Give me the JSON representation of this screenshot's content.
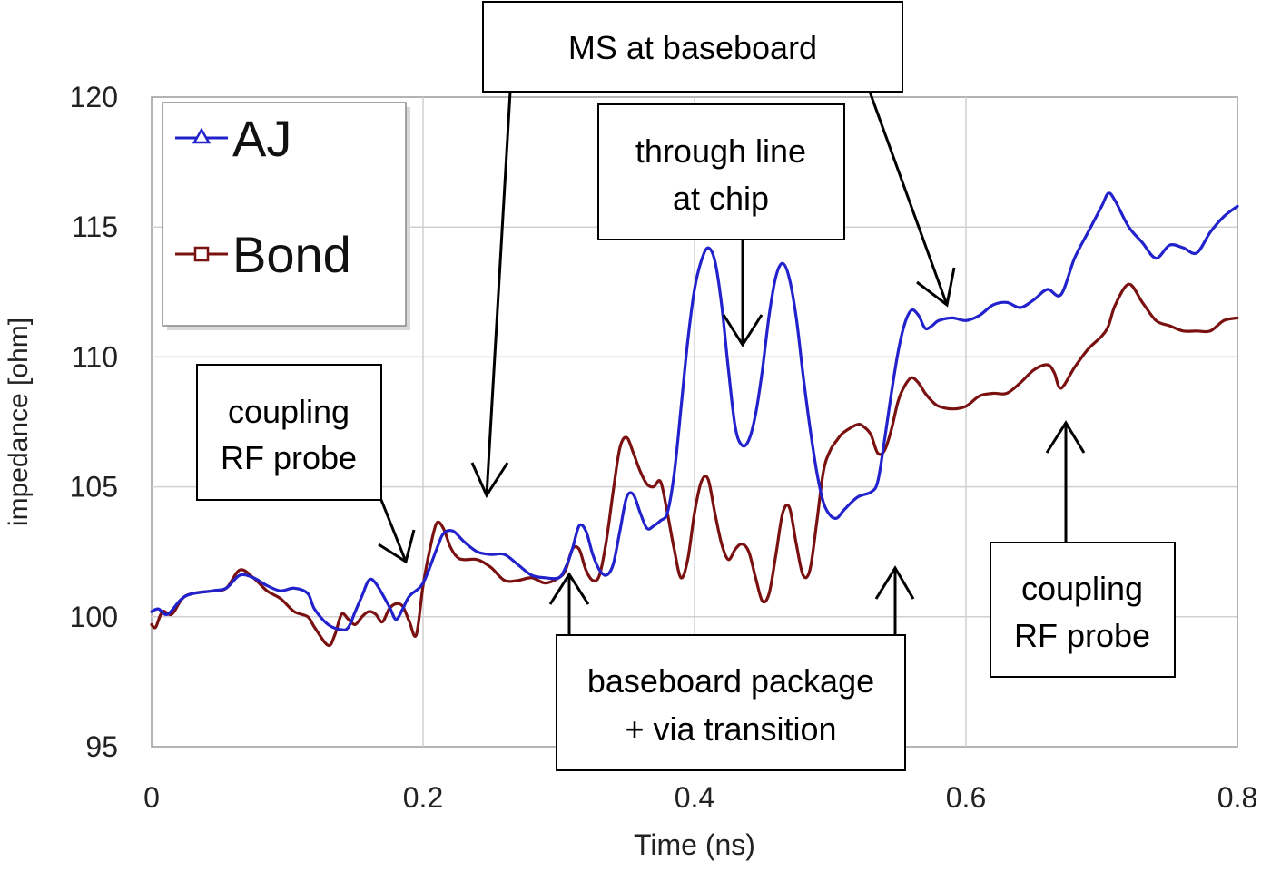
{
  "chart_data": {
    "type": "line",
    "xlabel": "Time (ns)",
    "ylabel": "impedance [ohm]",
    "xlim": [
      0,
      0.8
    ],
    "ylim": [
      95,
      120
    ],
    "x_ticks": [
      "0",
      "0.2",
      "0.4",
      "0.6",
      "0.8"
    ],
    "y_ticks": [
      "95",
      "100",
      "105",
      "110",
      "115",
      "120"
    ],
    "grid": true,
    "legend_position": "top-left",
    "series": [
      {
        "name": "AJ",
        "color": "#2222cc",
        "marker": "triangle",
        "x": [
          0,
          0.005,
          0.012,
          0.025,
          0.045,
          0.055,
          0.065,
          0.075,
          0.085,
          0.095,
          0.105,
          0.115,
          0.12,
          0.13,
          0.14,
          0.145,
          0.15,
          0.155,
          0.16,
          0.165,
          0.175,
          0.18,
          0.185,
          0.19,
          0.2,
          0.21,
          0.215,
          0.222,
          0.23,
          0.24,
          0.25,
          0.26,
          0.27,
          0.28,
          0.29,
          0.3,
          0.305,
          0.31,
          0.315,
          0.32,
          0.325,
          0.33,
          0.335,
          0.34,
          0.345,
          0.35,
          0.355,
          0.36,
          0.365,
          0.37,
          0.375,
          0.38,
          0.385,
          0.39,
          0.395,
          0.4,
          0.405,
          0.41,
          0.415,
          0.42,
          0.425,
          0.43,
          0.435,
          0.44,
          0.445,
          0.45,
          0.455,
          0.46,
          0.465,
          0.47,
          0.475,
          0.48,
          0.485,
          0.49,
          0.495,
          0.5,
          0.505,
          0.51,
          0.52,
          0.53,
          0.535,
          0.54,
          0.545,
          0.55,
          0.555,
          0.56,
          0.565,
          0.57,
          0.575,
          0.58,
          0.59,
          0.6,
          0.61,
          0.62,
          0.63,
          0.64,
          0.65,
          0.66,
          0.67,
          0.68,
          0.69,
          0.7,
          0.705,
          0.71,
          0.72,
          0.73,
          0.74,
          0.75,
          0.76,
          0.77,
          0.78,
          0.79,
          0.8
        ],
        "y": [
          100.2,
          100.3,
          100.1,
          100.8,
          101.0,
          101.1,
          101.6,
          101.5,
          101.2,
          101.0,
          101.1,
          100.9,
          100.3,
          99.7,
          99.5,
          99.6,
          100.2,
          100.8,
          101.4,
          101.3,
          100.4,
          99.9,
          100.3,
          100.8,
          101.3,
          102.6,
          103.2,
          103.3,
          102.9,
          102.5,
          102.4,
          102.4,
          102.0,
          101.6,
          101.5,
          101.5,
          101.9,
          102.6,
          103.5,
          103.3,
          102.4,
          101.8,
          101.6,
          102.0,
          103.3,
          104.6,
          104.7,
          104.0,
          103.4,
          103.5,
          103.7,
          104.0,
          105.5,
          108.0,
          110.6,
          112.6,
          113.7,
          114.2,
          113.7,
          112.0,
          109.5,
          107.3,
          106.6,
          106.8,
          107.8,
          109.5,
          111.6,
          113.1,
          113.6,
          113.0,
          111.5,
          109.3,
          107.3,
          105.6,
          104.4,
          103.9,
          103.8,
          104.1,
          104.6,
          104.8,
          105.2,
          106.8,
          108.6,
          110.2,
          111.3,
          111.8,
          111.6,
          111.1,
          111.2,
          111.4,
          111.5,
          111.4,
          111.6,
          112.0,
          112.1,
          111.9,
          112.2,
          112.6,
          112.4,
          113.8,
          114.8,
          115.8,
          116.3,
          116.0,
          115.0,
          114.4,
          113.8,
          114.3,
          114.2,
          114.0,
          114.8,
          115.4,
          115.8
        ]
      },
      {
        "name": "Bond",
        "color": "#7a1010",
        "marker": "square",
        "x": [
          0,
          0.003,
          0.008,
          0.015,
          0.025,
          0.045,
          0.055,
          0.065,
          0.075,
          0.085,
          0.095,
          0.105,
          0.115,
          0.12,
          0.13,
          0.135,
          0.14,
          0.145,
          0.15,
          0.155,
          0.16,
          0.165,
          0.17,
          0.175,
          0.18,
          0.185,
          0.19,
          0.195,
          0.2,
          0.205,
          0.21,
          0.215,
          0.22,
          0.225,
          0.23,
          0.24,
          0.25,
          0.26,
          0.27,
          0.28,
          0.29,
          0.3,
          0.305,
          0.31,
          0.315,
          0.32,
          0.325,
          0.33,
          0.335,
          0.34,
          0.345,
          0.35,
          0.355,
          0.36,
          0.365,
          0.37,
          0.375,
          0.38,
          0.385,
          0.39,
          0.395,
          0.4,
          0.405,
          0.41,
          0.415,
          0.42,
          0.425,
          0.43,
          0.435,
          0.44,
          0.445,
          0.45,
          0.455,
          0.46,
          0.465,
          0.47,
          0.475,
          0.48,
          0.485,
          0.49,
          0.495,
          0.5,
          0.505,
          0.51,
          0.52,
          0.525,
          0.53,
          0.535,
          0.54,
          0.545,
          0.55,
          0.555,
          0.56,
          0.565,
          0.57,
          0.575,
          0.58,
          0.59,
          0.6,
          0.61,
          0.62,
          0.63,
          0.64,
          0.65,
          0.66,
          0.665,
          0.67,
          0.68,
          0.69,
          0.7,
          0.705,
          0.71,
          0.72,
          0.73,
          0.74,
          0.75,
          0.76,
          0.77,
          0.78,
          0.79,
          0.8
        ],
        "y": [
          99.7,
          99.6,
          100.2,
          100.1,
          100.8,
          101.0,
          101.1,
          101.8,
          101.5,
          101.0,
          100.7,
          100.2,
          100.0,
          99.6,
          98.9,
          99.3,
          100.1,
          99.9,
          99.7,
          100.0,
          100.2,
          100.1,
          99.8,
          100.3,
          100.5,
          100.4,
          99.8,
          99.3,
          101.2,
          102.6,
          103.6,
          103.4,
          102.7,
          102.3,
          102.2,
          102.2,
          101.9,
          101.4,
          101.4,
          101.5,
          101.3,
          101.5,
          101.8,
          102.6,
          102.6,
          101.8,
          101.4,
          101.6,
          102.9,
          104.8,
          106.5,
          106.9,
          106.3,
          105.6,
          105.1,
          105.0,
          105.2,
          104.0,
          102.6,
          101.5,
          102.2,
          104.0,
          105.2,
          105.3,
          104.0,
          102.8,
          102.2,
          102.6,
          102.8,
          102.5,
          101.5,
          100.6,
          100.9,
          102.4,
          104.0,
          104.2,
          102.8,
          101.6,
          101.8,
          103.6,
          105.6,
          106.4,
          106.8,
          107.1,
          107.4,
          107.3,
          107.0,
          106.3,
          106.4,
          107.2,
          108.3,
          108.9,
          109.2,
          109.0,
          108.6,
          108.3,
          108.1,
          108.0,
          108.1,
          108.5,
          108.6,
          108.6,
          109.0,
          109.5,
          109.7,
          109.4,
          108.8,
          109.6,
          110.3,
          110.8,
          111.2,
          112.0,
          112.8,
          112.1,
          111.4,
          111.2,
          111.0,
          111.0,
          111.0,
          111.4,
          111.5
        ]
      }
    ],
    "annotations": [
      {
        "text": "MS at baseboard"
      },
      {
        "text": "through line at chip",
        "lines": [
          "through line",
          "at chip"
        ]
      },
      {
        "text": "coupling RF probe",
        "lines": [
          "coupling",
          "RF probe"
        ]
      },
      {
        "text": "baseboard package + via transition",
        "lines": [
          "baseboard package",
          "+ via transition"
        ]
      },
      {
        "text": "coupling RF probe",
        "lines": [
          "coupling",
          "RF probe"
        ]
      }
    ]
  }
}
